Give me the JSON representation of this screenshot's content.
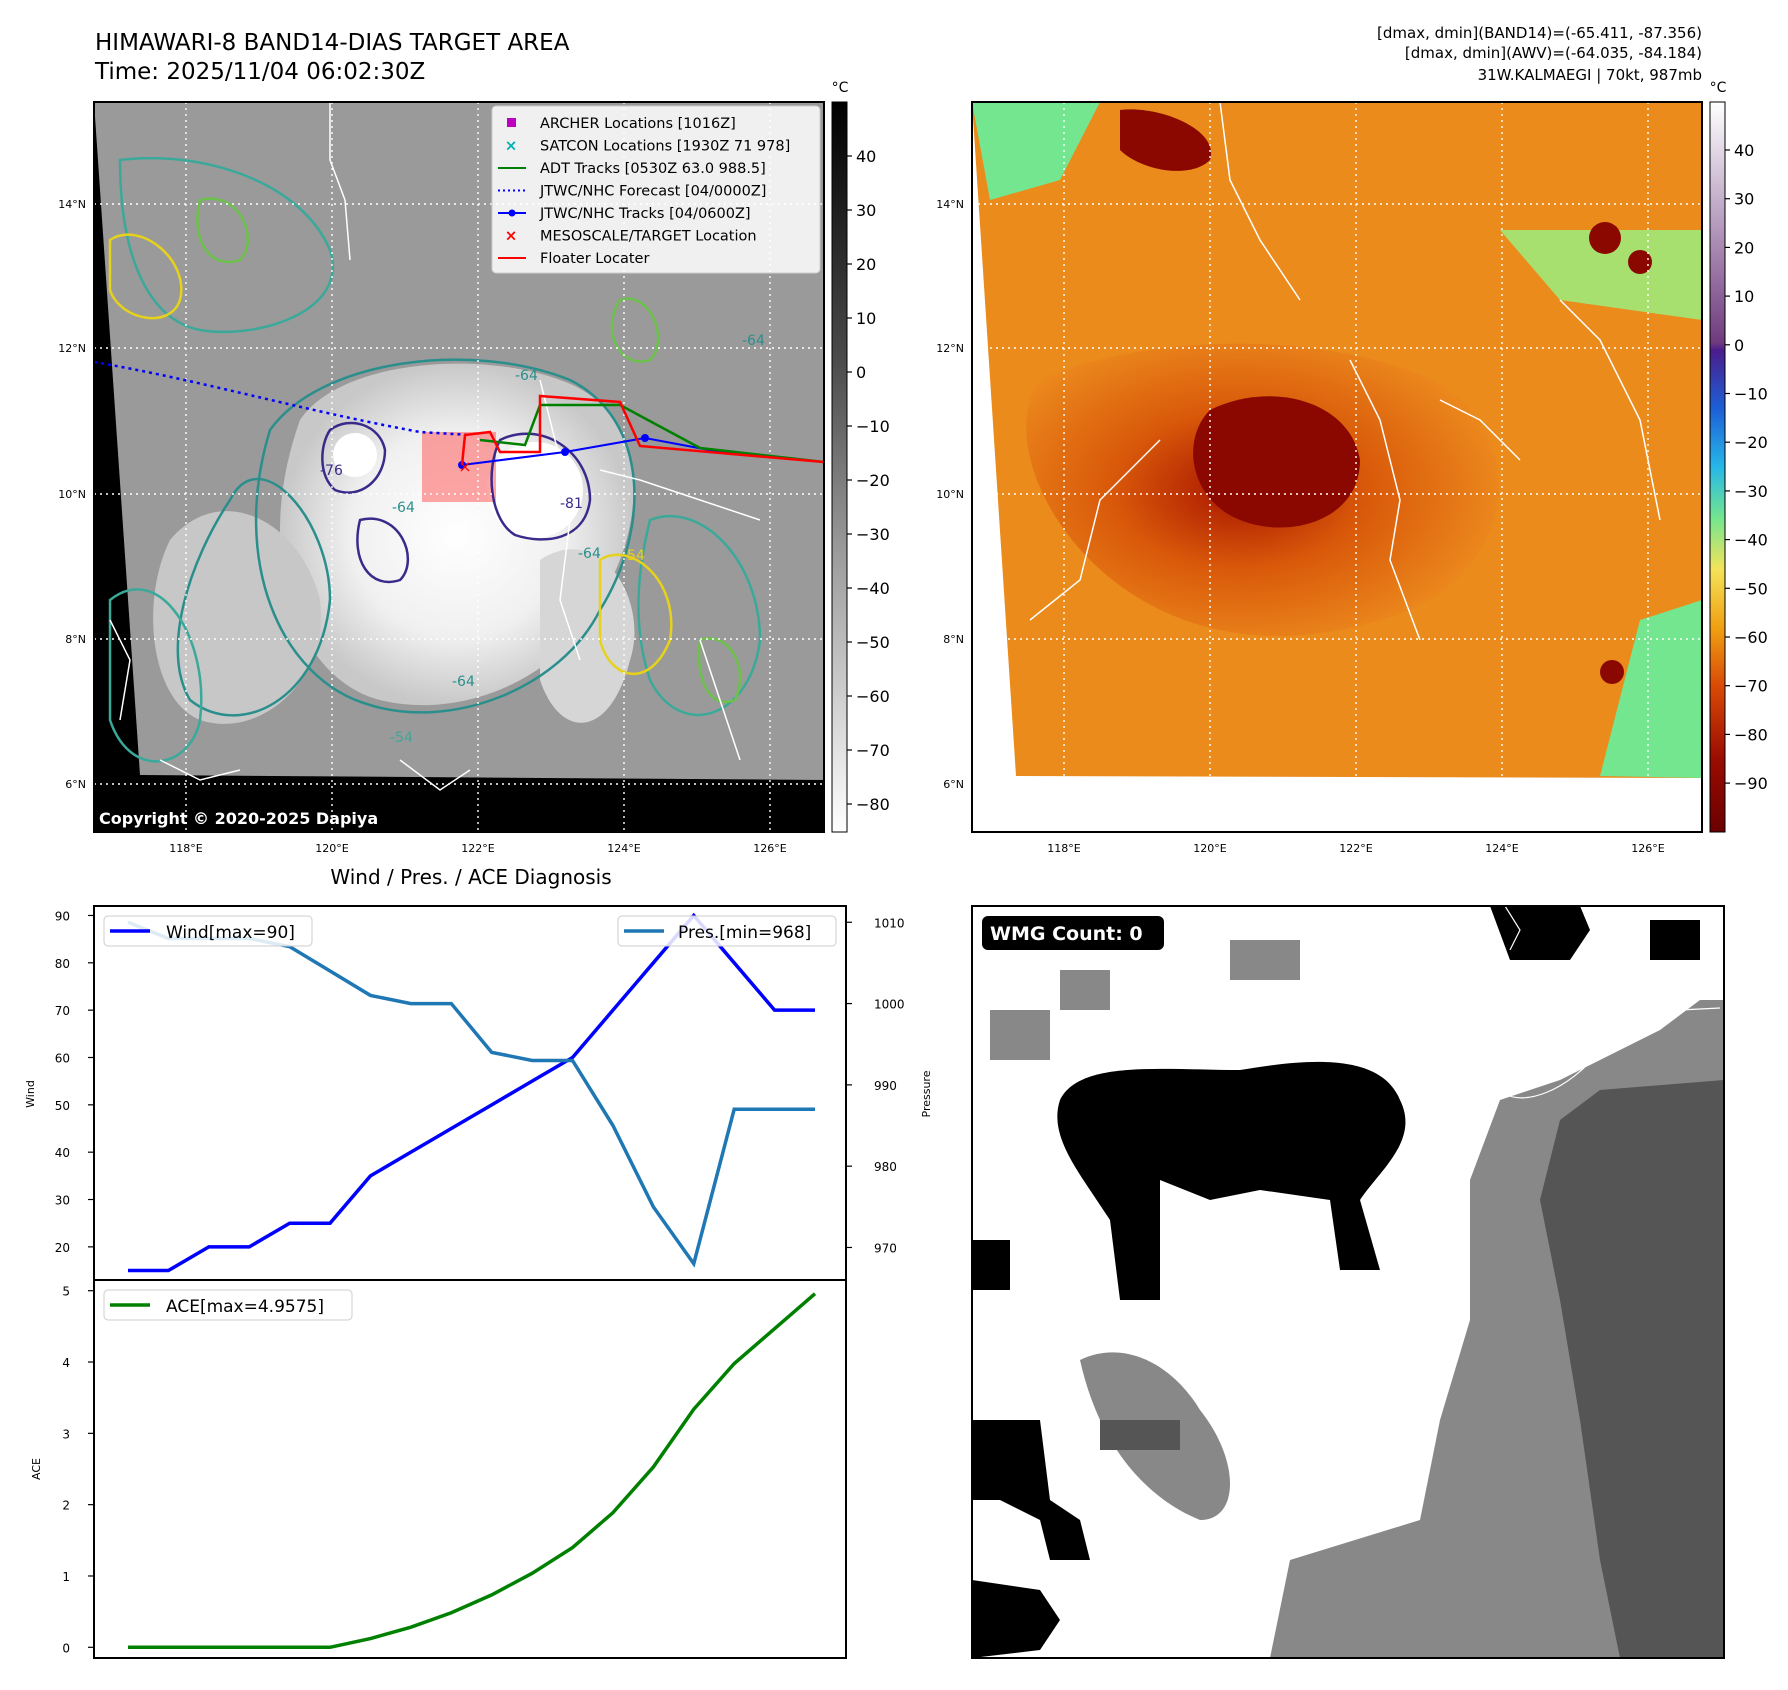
{
  "header": {
    "title": "HIMAWARI-8 BAND14-DIAS TARGET AREA",
    "time": "Time: 2025/11/04 06:02:30Z",
    "info1": "[dmax, dmin](BAND14)=(-65.411, -87.356)",
    "info2": "[dmax, dmin](AWV)=(-64.035, -84.184)",
    "info3": "31W.KALMAEGI | 70kt, 987mb"
  },
  "map": {
    "lat_labels": [
      "14°N",
      "12°N",
      "10°N",
      "8°N",
      "6°N"
    ],
    "lon_labels": [
      "118°E",
      "120°E",
      "122°E",
      "124°E",
      "126°E"
    ],
    "copyright": "Copyright © 2020-2025 Dapiya",
    "contour_labels": [
      "-64",
      "-64",
      "-76",
      "-81",
      "-64",
      "-64",
      "-54",
      "-54",
      "-64"
    ],
    "legend": [
      {
        "label": "ARCHER Locations [1016Z]",
        "color": "#c000c0",
        "marker": "square"
      },
      {
        "label": "SATCON Locations [1930Z 71 978]",
        "color": "#00b0b0",
        "marker": "x"
      },
      {
        "label": "ADT Tracks [0530Z 63.0 988.5]",
        "color": "#008000",
        "marker": "line"
      },
      {
        "label": "JTWC/NHC Forecast [04/0000Z]",
        "color": "#0000ff",
        "marker": "dotted"
      },
      {
        "label": "JTWC/NHC Tracks [04/0600Z]",
        "color": "#0000ff",
        "marker": "line-dot"
      },
      {
        "label": "MESOSCALE/TARGET Location",
        "color": "#ff0000",
        "marker": "x"
      },
      {
        "label": "Floater Locater",
        "color": "#ff0000",
        "marker": "line"
      }
    ]
  },
  "colorbar_gray": {
    "unit": "°C",
    "ticks": [
      "40",
      "30",
      "20",
      "10",
      "0",
      "−10",
      "−20",
      "−30",
      "−40",
      "−50",
      "−60",
      "−70",
      "−80"
    ]
  },
  "colorbar_color": {
    "unit": "°C",
    "ticks": [
      "40",
      "30",
      "20",
      "10",
      "0",
      "−10",
      "−20",
      "−30",
      "−40",
      "−50",
      "−60",
      "−70",
      "−80",
      "−90"
    ]
  },
  "wmg": {
    "label": "WMG Count: 0"
  },
  "chart_data": [
    {
      "type": "line",
      "title": "Wind / Pres. / ACE Diagnosis",
      "xlabel": "",
      "ylabel": "Wind",
      "ylabel_right": "Pressure",
      "ylim": [
        13,
        92
      ],
      "ylim_right": [
        966,
        1012
      ],
      "yticks": [
        20,
        30,
        40,
        50,
        60,
        70,
        80,
        90
      ],
      "yticks_right": [
        970,
        980,
        990,
        1000,
        1010
      ],
      "x": [
        0,
        1,
        2,
        3,
        4,
        5,
        6,
        7,
        8,
        9,
        10,
        11,
        12,
        13,
        14,
        15,
        16,
        17
      ],
      "series": [
        {
          "name": "Wind[max=90]",
          "axis": "left",
          "color": "#0000ff",
          "values": [
            15,
            15,
            20,
            20,
            25,
            25,
            35,
            40,
            45,
            50,
            55,
            60,
            70,
            80,
            90,
            80,
            70,
            70
          ]
        },
        {
          "name": "Pres.[min=968]",
          "axis": "right",
          "color": "#1f77b4",
          "values": [
            1010,
            1008,
            1008,
            1008,
            1007,
            1004,
            1001,
            1000,
            1000,
            994,
            993,
            993,
            985,
            975,
            968,
            987,
            987,
            987
          ]
        }
      ]
    },
    {
      "type": "line",
      "title": "",
      "xlabel": "",
      "ylabel": "ACE",
      "ylim": [
        -0.15,
        5.15
      ],
      "yticks": [
        0,
        1,
        2,
        3,
        4,
        5
      ],
      "x": [
        0,
        1,
        2,
        3,
        4,
        5,
        6,
        7,
        8,
        9,
        10,
        11,
        12,
        13,
        14,
        15,
        16,
        17
      ],
      "series": [
        {
          "name": "ACE[max=4.9575]",
          "color": "#008000",
          "values": [
            0,
            0,
            0,
            0,
            0,
            0,
            0.1225,
            0.2825,
            0.485,
            0.735,
            1.0375,
            1.3975,
            1.8875,
            2.5275,
            3.3375,
            3.9775,
            4.4675,
            4.9575
          ]
        }
      ]
    }
  ]
}
